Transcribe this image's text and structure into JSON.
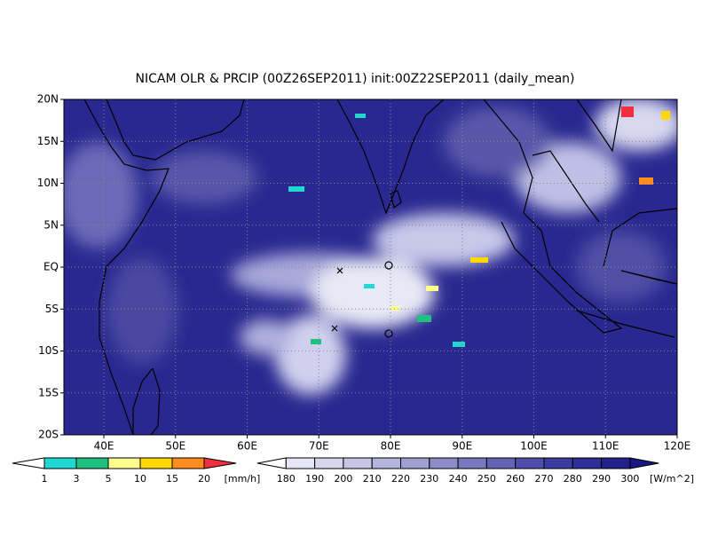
{
  "title": "NICAM OLR & PRCIP (00Z26SEP2011) init:00Z22SEP2011 (daily_mean)",
  "lat_labels": [
    "20N",
    "15N",
    "10N",
    "5N",
    "EQ",
    "5S",
    "10S",
    "15S",
    "20S"
  ],
  "lon_labels": [
    "40E",
    "50E",
    "60E",
    "70E",
    "80E",
    "90E",
    "100E",
    "110E",
    "120E"
  ],
  "precip_bar": {
    "levels": [
      1,
      3,
      5,
      10,
      15,
      20
    ],
    "unit": "[mm/h]",
    "colors": [
      "#ffffff",
      "#20d8d0",
      "#20c080",
      "#ffff90",
      "#ffd800",
      "#ff8c20",
      "#f03040"
    ]
  },
  "olr_bar": {
    "levels": [
      180,
      190,
      200,
      210,
      220,
      230,
      240,
      250,
      260,
      270,
      280,
      290,
      300
    ],
    "unit": "[W/m^2]",
    "colors": [
      "#ffffff",
      "#e6e6f4",
      "#d6d6ec",
      "#c6c6e4",
      "#b4b4dc",
      "#a0a0d2",
      "#8c8cc8",
      "#7878be",
      "#6464b4",
      "#4e4eaa",
      "#3c3ca0",
      "#2e2e96",
      "#22228c",
      "#181884"
    ]
  }
}
